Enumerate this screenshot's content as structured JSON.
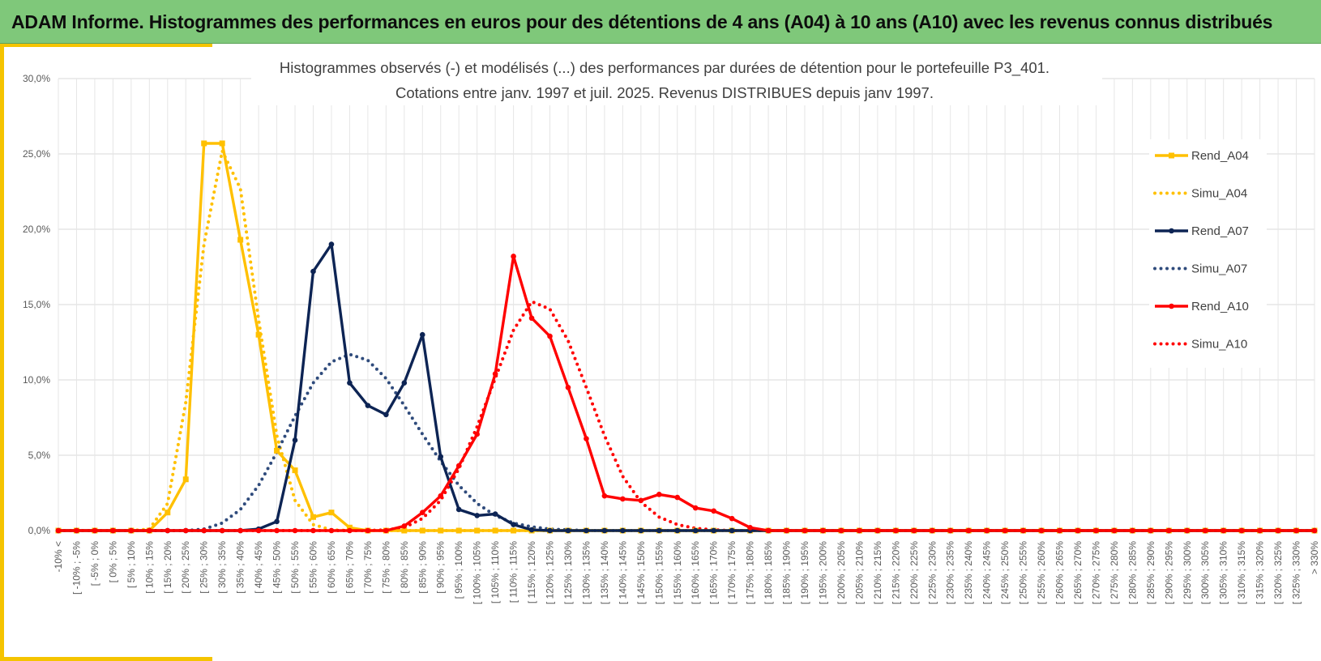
{
  "banner": {
    "title": "ADAM Informe. Histogrammes des performances en euros pour des détentions de 4 ans (A04) à 10 ans (A10) avec les revenus connus distribués"
  },
  "colors": {
    "banner_bg": "#7fc87a",
    "frame_accent": "#f5c400",
    "a04": "#ffc000",
    "a07": "#0d2454",
    "a07_sim": "#2f4b7c",
    "a10": "#ff0000"
  },
  "chart_data": {
    "type": "line",
    "title_lines": [
      "Histogrammes observés (-) et modélisés (...) des performances par durées de détention pour le portefeuille P3_401.",
      "Cotations entre janv. 1997 et juil. 2025. Revenus DISTRIBUES depuis janv 1997."
    ],
    "ylim": [
      0,
      30
    ],
    "yticks": [
      "0,0%",
      "5,0%",
      "10,0%",
      "15,0%",
      "20,0%",
      "25,0%",
      "30,0%"
    ],
    "grid": true,
    "legend_position": "right",
    "categories": [
      "-10% <",
      "[ -10% ; -5%",
      "[ -5% ; 0%",
      "[ 0% ; 5%",
      "[ 5% ; 10%",
      "[ 10% ; 15%",
      "[ 15% ; 20%",
      "[ 20% ; 25%",
      "[ 25% ; 30%",
      "[ 30% ; 35%",
      "[ 35% ; 40%",
      "[ 40% ; 45%",
      "[ 45% ; 50%",
      "[ 50% ; 55%",
      "[ 55% ; 60%",
      "[ 60% ; 65%",
      "[ 65% ; 70%",
      "[ 70% ; 75%",
      "[ 75% ; 80%",
      "[ 80% ; 85%",
      "[ 85% ; 90%",
      "[ 90% ; 95%",
      "[ 95% ; 100%",
      "[ 100% ; 105%",
      "[ 105% ; 110%",
      "[ 110% ; 115%",
      "[ 115% ; 120%",
      "[ 120% ; 125%",
      "[ 125% ; 130%",
      "[ 130% ; 135%",
      "[ 135% ; 140%",
      "[ 140% ; 145%",
      "[ 145% ; 150%",
      "[ 150% ; 155%",
      "[ 155% ; 160%",
      "[ 160% ; 165%",
      "[ 165% ; 170%",
      "[ 170% ; 175%",
      "[ 175% ; 180%",
      "[ 180% ; 185%",
      "[ 185% ; 190%",
      "[ 190% ; 195%",
      "[ 195% ; 200%",
      "[ 200% ; 205%",
      "[ 205% ; 210%",
      "[ 210% ; 215%",
      "[ 215% ; 220%",
      "[ 220% ; 225%",
      "[ 225% ; 230%",
      "[ 230% ; 235%",
      "[ 235% ; 240%",
      "[ 240% ; 245%",
      "[ 245% ; 250%",
      "[ 250% ; 255%",
      "[ 255% ; 260%",
      "[ 260% ; 265%",
      "[ 265% ; 270%",
      "[ 270% ; 275%",
      "[ 275% ; 280%",
      "[ 280% ; 285%",
      "[ 285% ; 290%",
      "[ 290% ; 295%",
      "[ 295% ; 300%",
      "[ 300% ; 305%",
      "[ 305% ; 310%",
      "[ 310% ; 315%",
      "[ 315% ; 320%",
      "[ 320% ; 325%",
      "[ 325% ; 330%",
      "> 330%"
    ],
    "series": [
      {
        "name": "Rend_A04",
        "style": "solid",
        "marker": "square",
        "color": "#ffc000",
        "values": [
          0,
          0,
          0,
          0,
          0,
          0,
          1.2,
          3.4,
          25.7,
          25.7,
          19.3,
          13.0,
          5.3,
          4.0,
          0.9,
          1.2,
          0.2,
          0,
          0,
          0,
          0,
          0,
          0,
          0,
          0,
          0,
          0,
          0,
          0,
          0,
          0,
          0,
          0,
          0,
          0,
          0,
          0,
          0,
          0,
          0,
          0,
          0,
          0,
          0,
          0,
          0,
          0,
          0,
          0,
          0,
          0,
          0,
          0,
          0,
          0,
          0,
          0,
          0,
          0,
          0,
          0,
          0,
          0,
          0,
          0,
          0,
          0,
          0,
          0,
          0
        ]
      },
      {
        "name": "Simu_A04",
        "style": "dotted",
        "color": "#ffc000",
        "values": [
          0,
          0,
          0,
          0,
          0,
          0.1,
          1.8,
          8.5,
          19.0,
          25.2,
          22.7,
          14.0,
          6.3,
          2.0,
          0.4,
          0.05,
          0,
          0,
          0,
          0,
          0,
          0,
          0,
          0,
          0,
          0,
          0,
          0,
          0,
          0,
          0,
          0,
          0,
          0,
          0,
          0,
          0,
          0,
          0,
          0,
          0,
          0,
          0,
          0,
          0,
          0,
          0,
          0,
          0,
          0,
          0,
          0,
          0,
          0,
          0,
          0,
          0,
          0,
          0,
          0,
          0,
          0,
          0,
          0,
          0,
          0,
          0,
          0,
          0,
          0
        ]
      },
      {
        "name": "Rend_A07",
        "style": "solid",
        "marker": "circle",
        "color": "#0d2454",
        "values": [
          0,
          0,
          0,
          0,
          0,
          0,
          0,
          0,
          0,
          0,
          0,
          0.1,
          0.6,
          6.0,
          17.2,
          19.0,
          9.8,
          8.3,
          7.7,
          9.8,
          13.0,
          4.9,
          1.4,
          1.0,
          1.1,
          0.4,
          0.05,
          0,
          0,
          0,
          0,
          0,
          0,
          0,
          0,
          0,
          0,
          0,
          0,
          0,
          0,
          0,
          0,
          0,
          0,
          0,
          0,
          0,
          0,
          0,
          0,
          0,
          0,
          0,
          0,
          0,
          0,
          0,
          0,
          0,
          0,
          0,
          0,
          0,
          0,
          0,
          0,
          0,
          0,
          0
        ]
      },
      {
        "name": "Simu_A07",
        "style": "dotted",
        "color": "#2f4b7c",
        "values": [
          0,
          0,
          0,
          0,
          0,
          0,
          0,
          0,
          0.1,
          0.5,
          1.4,
          3.0,
          5.2,
          7.6,
          9.8,
          11.2,
          11.7,
          11.3,
          10.1,
          8.3,
          6.4,
          4.6,
          3.0,
          1.8,
          1.0,
          0.5,
          0.25,
          0.1,
          0.05,
          0,
          0,
          0,
          0,
          0,
          0,
          0,
          0,
          0,
          0,
          0,
          0,
          0,
          0,
          0,
          0,
          0,
          0,
          0,
          0,
          0,
          0,
          0,
          0,
          0,
          0,
          0,
          0,
          0,
          0,
          0,
          0,
          0,
          0,
          0,
          0,
          0,
          0,
          0,
          0,
          0
        ]
      },
      {
        "name": "Rend_A10",
        "style": "solid",
        "marker": "circle",
        "color": "#ff0000",
        "values": [
          0,
          0,
          0,
          0,
          0,
          0,
          0,
          0,
          0,
          0,
          0,
          0,
          0,
          0,
          0,
          0,
          0,
          0,
          0,
          0.3,
          1.2,
          2.3,
          4.3,
          6.4,
          10.4,
          18.2,
          14.1,
          12.9,
          9.5,
          6.1,
          2.3,
          2.1,
          2.0,
          2.4,
          2.2,
          1.5,
          1.3,
          0.8,
          0.2,
          0,
          0,
          0,
          0,
          0,
          0,
          0,
          0,
          0,
          0,
          0,
          0,
          0,
          0,
          0,
          0,
          0,
          0,
          0,
          0,
          0,
          0,
          0,
          0,
          0,
          0,
          0,
          0,
          0,
          0,
          0
        ]
      },
      {
        "name": "Simu_A10",
        "style": "dotted",
        "color": "#ff0000",
        "values": [
          0,
          0,
          0,
          0,
          0,
          0,
          0,
          0,
          0,
          0,
          0,
          0,
          0,
          0,
          0,
          0,
          0,
          0,
          0.05,
          0.2,
          0.8,
          2.0,
          4.1,
          6.9,
          10.1,
          13.3,
          15.2,
          14.7,
          12.6,
          9.5,
          6.3,
          3.6,
          1.9,
          0.9,
          0.4,
          0.15,
          0.05,
          0,
          0,
          0,
          0,
          0,
          0,
          0,
          0,
          0,
          0,
          0,
          0,
          0,
          0,
          0,
          0,
          0,
          0,
          0,
          0,
          0,
          0,
          0,
          0,
          0,
          0,
          0,
          0,
          0,
          0,
          0,
          0,
          0
        ]
      }
    ]
  }
}
